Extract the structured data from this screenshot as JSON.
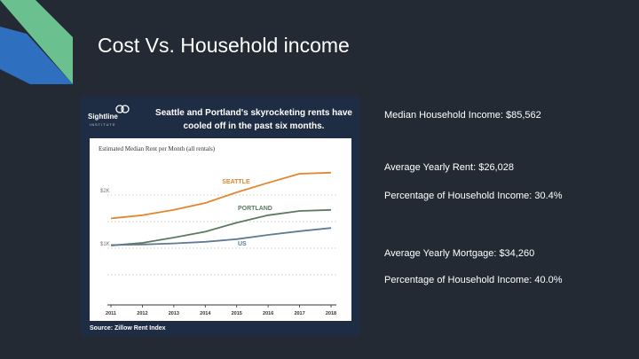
{
  "slide": {
    "title": "Cost Vs. Household income"
  },
  "figure": {
    "logo_name": "Sightline",
    "logo_sub": "INSTITUTE",
    "headline": "Seattle and Portland's skyrocketing rents have cooled off in the past six months.",
    "source": "Source: Zillow Rent Index"
  },
  "stats": {
    "median_income": "Median Household Income: $85,562",
    "yearly_rent": "Average Yearly Rent: $26,028",
    "rent_pct": "Percentage of Household Income: 30.4%",
    "yearly_mortgage": "Average Yearly Mortgage: $34,260",
    "mortgage_pct": "Percentage of Household Income: 40.0%"
  },
  "colors": {
    "background": "#232a34",
    "accent_green": "#6ac18f",
    "accent_blue": "#2f6fbf",
    "seattle": "#e3862c",
    "portland": "#5c7a5e",
    "us": "#607a94"
  },
  "chart_data": {
    "type": "line",
    "title": "Estimated Median Rent per Month (all rentals)",
    "x": [
      2011,
      2012,
      2013,
      2014,
      2015,
      2016,
      2017,
      2018
    ],
    "ytick_labels": [
      "$1K",
      "$2K"
    ],
    "ylim": [
      0,
      2600
    ],
    "series": [
      {
        "name": "SEATTLE",
        "color": "#e3862c",
        "values": [
          1560,
          1620,
          1720,
          1850,
          2050,
          2230,
          2400,
          2420
        ]
      },
      {
        "name": "PORTLAND",
        "color": "#5c7a5e",
        "values": [
          1050,
          1100,
          1200,
          1310,
          1480,
          1620,
          1700,
          1720
        ]
      },
      {
        "name": "US",
        "color": "#607a94",
        "values": [
          1060,
          1070,
          1090,
          1120,
          1170,
          1250,
          1320,
          1380
        ]
      }
    ]
  }
}
